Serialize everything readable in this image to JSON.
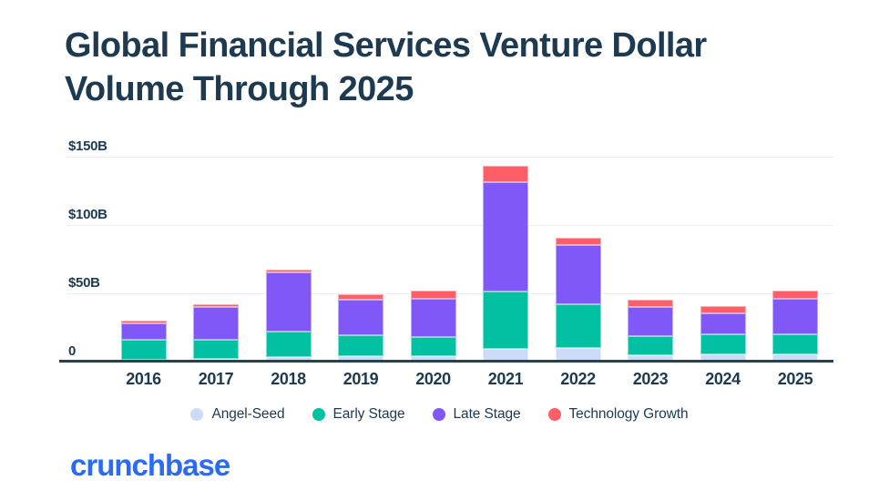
{
  "header": {
    "title_line1": "Global Financial Services Venture Dollar",
    "title_line2": "Volume Through 2025"
  },
  "chart_data": {
    "type": "bar",
    "stacked": true,
    "title": "Global Financial Services Venture Dollar Volume Through 2025",
    "unit": "USD billions",
    "xlabel": "",
    "ylabel": "",
    "categories": [
      "2016",
      "2017",
      "2018",
      "2019",
      "2020",
      "2021",
      "2022",
      "2023",
      "2024",
      "2025"
    ],
    "series": [
      {
        "name": "Angel-Seed",
        "color": "#CCDCF8",
        "values": [
          2,
          2.5,
          4,
          4.5,
          5,
          10,
          11,
          5.5,
          6,
          6
        ]
      },
      {
        "name": "Early Stage",
        "color": "#02C1A3",
        "values": [
          15,
          14,
          19,
          15.5,
          14,
          42,
          32,
          14,
          14.5,
          14.5
        ]
      },
      {
        "name": "Late Stage",
        "color": "#8158F8",
        "values": [
          12,
          24,
          43,
          26,
          28,
          80,
          43,
          21,
          15.5,
          26.5
        ]
      },
      {
        "name": "Technology Growth",
        "color": "#FD5E68",
        "values": [
          2,
          2,
          2,
          4,
          5.5,
          12,
          5.5,
          5.5,
          5.5,
          6
        ]
      }
    ],
    "totals": [
      31,
      42.5,
      68,
      50,
      52.5,
      144,
      91.5,
      46,
      41.5,
      53
    ],
    "ylim": [
      0,
      150
    ],
    "yticks": [
      {
        "value": 0,
        "label": "0"
      },
      {
        "value": 50,
        "label": "$50B"
      },
      {
        "value": 100,
        "label": "$100B"
      },
      {
        "value": 150,
        "label": "$150B"
      }
    ],
    "grid": true,
    "legend_position": "bottom"
  },
  "footer": {
    "logo_text": "crunchbase",
    "logo_color": "#2A6AF5"
  },
  "colors": {
    "text": "#1D3A50",
    "gridline": "#EDEFF2",
    "axis_line": "#26424F",
    "background": "#FFFFFF"
  }
}
